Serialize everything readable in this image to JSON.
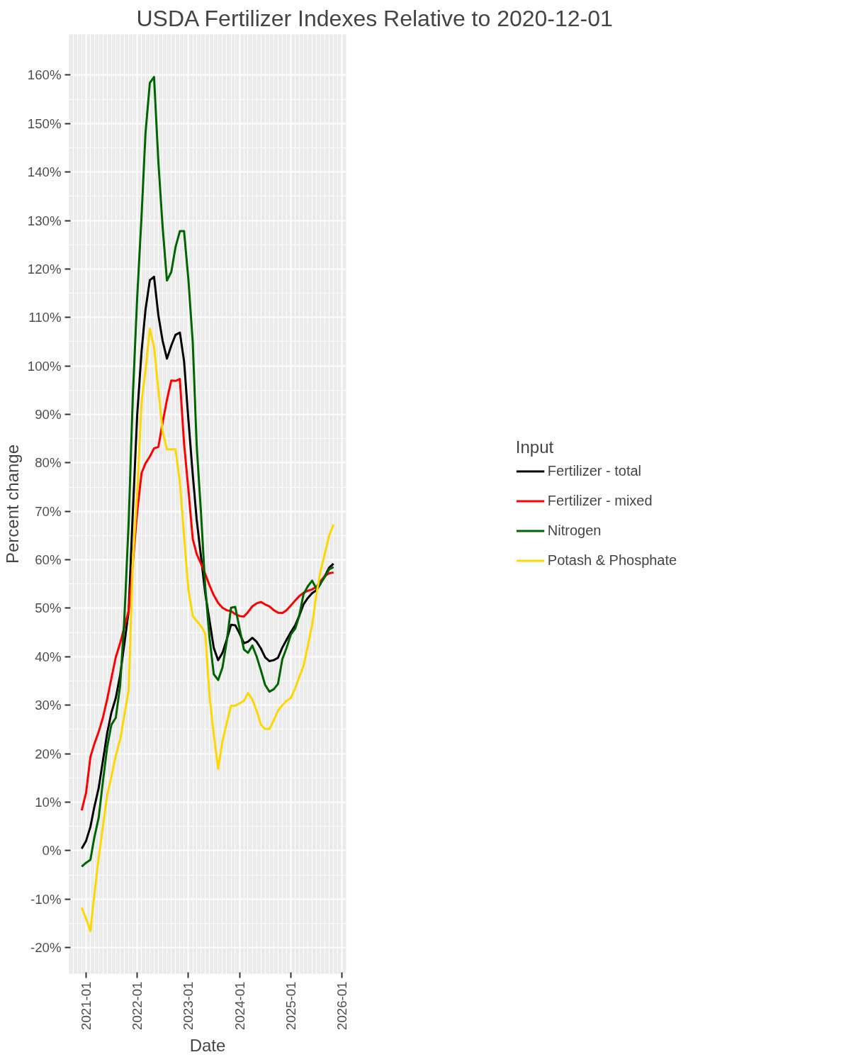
{
  "chart_data": {
    "type": "line",
    "title": "USDA Fertilizer Indexes Relative to  2020-12-01",
    "xlabel": "Date",
    "ylabel": "Percent change",
    "legend_title": "Input",
    "x": [
      "2020-12",
      "2021-01",
      "2021-02",
      "2021-03",
      "2021-04",
      "2021-05",
      "2021-06",
      "2021-07",
      "2021-08",
      "2021-09",
      "2021-10",
      "2021-11",
      "2021-12",
      "2022-01",
      "2022-02",
      "2022-03",
      "2022-04",
      "2022-05",
      "2022-06",
      "2022-07",
      "2022-08",
      "2022-09",
      "2022-10",
      "2022-11",
      "2022-12",
      "2023-01",
      "2023-02",
      "2023-03",
      "2023-04",
      "2023-05",
      "2023-06",
      "2023-07",
      "2023-08",
      "2023-09",
      "2023-10",
      "2023-11",
      "2023-12",
      "2024-01",
      "2024-02",
      "2024-03",
      "2024-04",
      "2024-05",
      "2024-06",
      "2024-07",
      "2024-08",
      "2024-09",
      "2024-10",
      "2024-11",
      "2024-12",
      "2025-01",
      "2025-02",
      "2025-03",
      "2025-04",
      "2025-05",
      "2025-06",
      "2025-07",
      "2025-08",
      "2025-09",
      "2025-10",
      "2025-11"
    ],
    "series": [
      {
        "name": "Fertilizer - total",
        "color": "#000000",
        "values": [
          0.4,
          2.0,
          4.9,
          9.0,
          12.9,
          18.5,
          24.3,
          28.5,
          31.5,
          36.2,
          42.6,
          49.5,
          70,
          90,
          103,
          111.6,
          117.7,
          118.4,
          110.4,
          105.2,
          101.5,
          104.2,
          106.4,
          106.9,
          101,
          88.9,
          77.6,
          68.3,
          60.6,
          53.1,
          47.4,
          41.8,
          39.3,
          40.8,
          43.5,
          46.6,
          46.5,
          44.8,
          42.8,
          43.1,
          43.9,
          43.1,
          41.7,
          39.9,
          39.1,
          39.3,
          39.8,
          41.9,
          43.5,
          45.1,
          46.5,
          48.4,
          50.8,
          52.1,
          53.1,
          53.7,
          55.1,
          56.7,
          58.4,
          59.2
        ]
      },
      {
        "name": "Fertilizer - mixed",
        "color": "#ff0000",
        "values": [
          8.3,
          11.9,
          19.3,
          22.0,
          24.5,
          27.4,
          31.3,
          35.6,
          39.9,
          42.8,
          46.1,
          49.5,
          59.5,
          70,
          77.9,
          79.9,
          81.3,
          83,
          83.3,
          88.3,
          93,
          97,
          96.9,
          97.3,
          84,
          74.5,
          64.3,
          61.2,
          59.2,
          57.1,
          54.7,
          52.7,
          51.1,
          50.1,
          49.6,
          49.4,
          48.8,
          48.4,
          48.3,
          49.2,
          50.4,
          51.0,
          51.3,
          50.8,
          50.4,
          49.6,
          49.1,
          49.0,
          49.6,
          50.6,
          51.6,
          52.5,
          53.2,
          53.6,
          53.9,
          54.4,
          55.6,
          56.7,
          57.2,
          57.4
        ]
      },
      {
        "name": "Nitrogen",
        "color": "#006400",
        "values": [
          -3.3,
          -2.5,
          -1.9,
          2.7,
          6.8,
          14.2,
          21.4,
          26.0,
          27.4,
          34.0,
          47.7,
          67.8,
          94,
          114.3,
          131,
          148,
          158.4,
          159.6,
          142,
          128.7,
          117.6,
          119.4,
          124.5,
          127.8,
          127.8,
          117.8,
          104.9,
          83.6,
          69.6,
          54.4,
          43.8,
          36.4,
          35.2,
          37.8,
          43.1,
          50.1,
          50.3,
          45.8,
          41.5,
          40.8,
          42.3,
          40.1,
          37.2,
          34.2,
          32.8,
          33.3,
          34.4,
          39.5,
          41.8,
          44.6,
          45.8,
          48.4,
          52.9,
          54.5,
          55.7,
          54.1,
          55.2,
          56.5,
          58.0,
          58.5
        ]
      },
      {
        "name": "Potash & Phosphate",
        "color": "#ffd700",
        "values": [
          -11.8,
          -14,
          -16.6,
          -9.1,
          -1.6,
          5.0,
          11.5,
          15.3,
          19.6,
          22.9,
          27.9,
          33.2,
          60,
          74,
          92.6,
          99,
          107.7,
          103.9,
          95,
          86.5,
          82.8,
          82.8,
          82.8,
          76.1,
          65,
          53.8,
          48.4,
          47.4,
          46.3,
          44.8,
          31.9,
          23.9,
          16.9,
          22.6,
          26.3,
          29.9,
          29.9,
          30.4,
          30.9,
          32.5,
          31.2,
          28.9,
          26.0,
          25.1,
          25.1,
          26.9,
          28.9,
          30.0,
          30.9,
          31.5,
          33.5,
          35.8,
          38.1,
          42.1,
          46.5,
          52.7,
          57.7,
          61.4,
          65.0,
          67.3
        ]
      }
    ],
    "xlim": [
      "2020-09-02",
      "2026-01-30"
    ],
    "xticks": [
      "2021-01",
      "2022-01",
      "2023-01",
      "2024-01",
      "2025-01",
      "2026-01"
    ],
    "ylim": [
      -25.4,
      168.4
    ],
    "yticks": [
      {
        "value": -20,
        "label": "-20%"
      },
      {
        "value": -10,
        "label": "-10%"
      },
      {
        "value": 0,
        "label": "0%"
      },
      {
        "value": 10,
        "label": "10%"
      },
      {
        "value": 20,
        "label": "20%"
      },
      {
        "value": 30,
        "label": "30%"
      },
      {
        "value": 40,
        "label": "40%"
      },
      {
        "value": 50,
        "label": "50%"
      },
      {
        "value": 60,
        "label": "60%"
      },
      {
        "value": 70,
        "label": "70%"
      },
      {
        "value": 80,
        "label": "80%"
      },
      {
        "value": 90,
        "label": "90%"
      },
      {
        "value": 100,
        "label": "100%"
      },
      {
        "value": 110,
        "label": "110%"
      },
      {
        "value": 120,
        "label": "120%"
      },
      {
        "value": 130,
        "label": "130%"
      },
      {
        "value": 140,
        "label": "140%"
      },
      {
        "value": 150,
        "label": "150%"
      },
      {
        "value": 160,
        "label": "160%"
      }
    ],
    "grid": true,
    "legend": "right",
    "marker": "none",
    "line_style": "solid"
  }
}
